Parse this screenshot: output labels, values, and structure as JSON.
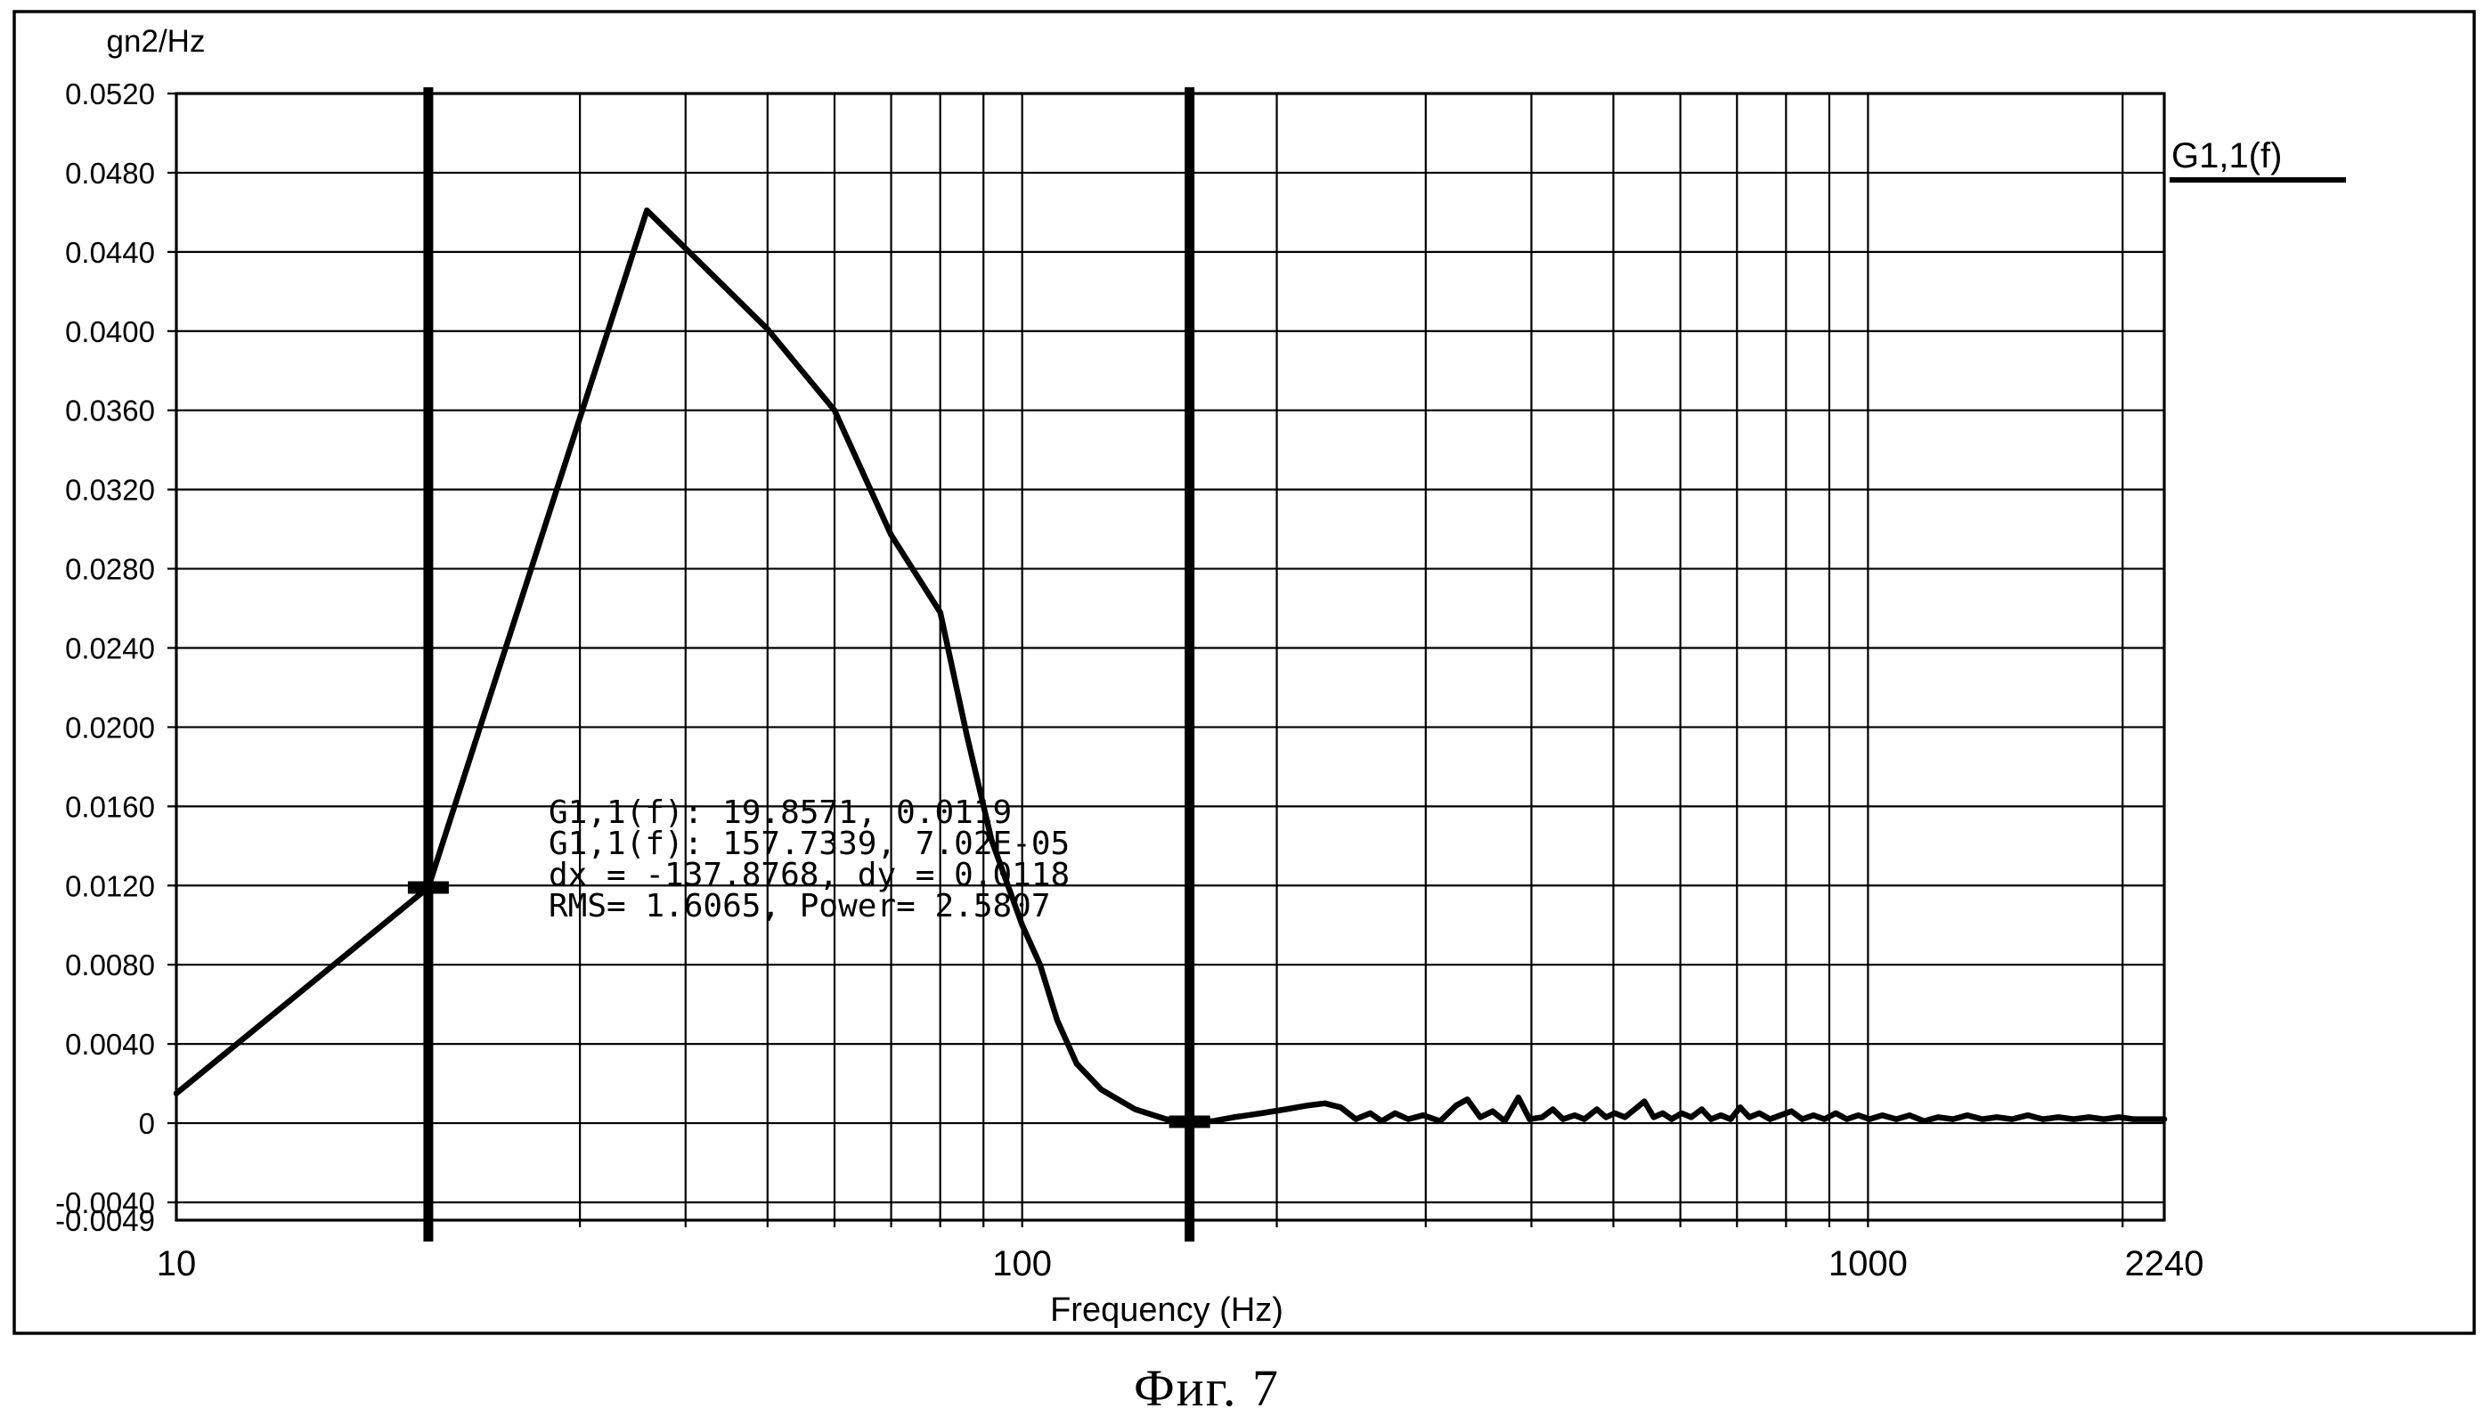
{
  "figure": {
    "caption": "Фиг. 7"
  },
  "chart_data": {
    "type": "line",
    "x_scale": "log",
    "xlabel": "Frequency (Hz)",
    "ylabel": "gn2/Hz",
    "xlim": [
      10,
      2240
    ],
    "ylim": [
      -0.0049,
      0.052
    ],
    "grid": true,
    "legend": {
      "label": "G1,1(f)",
      "position": "outside-top-right"
    },
    "x_ticks": [
      {
        "value": 10,
        "label": "10"
      },
      {
        "value": 100,
        "label": "100"
      },
      {
        "value": 1000,
        "label": "1000"
      },
      {
        "value": 2240,
        "label": "2240"
      }
    ],
    "x_gridlines": [
      20,
      30,
      40,
      50,
      60,
      70,
      80,
      90,
      100,
      200,
      300,
      400,
      500,
      600,
      700,
      800,
      900,
      1000,
      2000
    ],
    "y_ticks": [
      {
        "value": 0.052,
        "label": "0.0520"
      },
      {
        "value": 0.048,
        "label": "0.0480"
      },
      {
        "value": 0.044,
        "label": "0.0440"
      },
      {
        "value": 0.04,
        "label": "0.0400"
      },
      {
        "value": 0.036,
        "label": "0.0360"
      },
      {
        "value": 0.032,
        "label": "0.0320"
      },
      {
        "value": 0.028,
        "label": "0.0280"
      },
      {
        "value": 0.024,
        "label": "0.0240"
      },
      {
        "value": 0.02,
        "label": "0.0200"
      },
      {
        "value": 0.016,
        "label": "0.0160"
      },
      {
        "value": 0.012,
        "label": "0.0120"
      },
      {
        "value": 0.008,
        "label": "0.0080"
      },
      {
        "value": 0.004,
        "label": "0.0040"
      },
      {
        "value": 0,
        "label": "0"
      },
      {
        "value": -0.004,
        "label": "-0.0040"
      },
      {
        "value": -0.0049,
        "label": "-0.0049",
        "edge": true
      }
    ],
    "cursors": [
      {
        "f": 19.8571,
        "value": 0.0119
      },
      {
        "f": 157.7339,
        "value": 7.02e-05
      }
    ],
    "annotation": {
      "lines": [
        "G1,1(f): 19.8571, 0.0119",
        "G1,1(f): 157.7339, 7.02E-05",
        "dx = -137.8768, dy = 0.0118",
        "RMS= 1.6065, Power= 2.5807"
      ]
    },
    "cursor_readout": {
      "dx": -137.8768,
      "dy": 0.0118,
      "rms": 1.6065,
      "power": 2.5807
    },
    "series": [
      {
        "name": "G1,1(f)",
        "points": [
          [
            10,
            0.0015
          ],
          [
            19.8571,
            0.0119
          ],
          [
            36,
            0.0461
          ],
          [
            50,
            0.0401
          ],
          [
            60,
            0.036
          ],
          [
            70,
            0.0297
          ],
          [
            80,
            0.0258
          ],
          [
            86,
            0.0196
          ],
          [
            92,
            0.0143
          ],
          [
            100,
            0.01
          ],
          [
            105,
            0.008
          ],
          [
            110,
            0.0052
          ],
          [
            116,
            0.003
          ],
          [
            124,
            0.0017
          ],
          [
            136,
            0.0007
          ],
          [
            148,
            0.0002
          ],
          [
            157.7339,
            7.02e-05
          ],
          [
            168,
            0.0001
          ],
          [
            178,
            0.0003
          ],
          [
            192,
            0.0005
          ],
          [
            205,
            0.0007
          ],
          [
            218,
            0.0009
          ],
          [
            228,
            0.001
          ],
          [
            238,
            0.0008
          ],
          [
            248,
            0.0002
          ],
          [
            258,
            0.0005
          ],
          [
            266,
            0.0001
          ],
          [
            276,
            0.0005
          ],
          [
            286,
            0.0002
          ],
          [
            298,
            0.0004
          ],
          [
            312,
            0.0001
          ],
          [
            326,
            0.0009
          ],
          [
            336,
            0.0012
          ],
          [
            348,
            0.0003
          ],
          [
            360,
            0.0006
          ],
          [
            372,
            0.0001
          ],
          [
            386,
            0.0013
          ],
          [
            398,
            0.0002
          ],
          [
            412,
            0.0003
          ],
          [
            424,
            0.0007
          ],
          [
            436,
            0.0002
          ],
          [
            450,
            0.0004
          ],
          [
            462,
            0.0002
          ],
          [
            478,
            0.0007
          ],
          [
            490,
            0.0003
          ],
          [
            502,
            0.0005
          ],
          [
            516,
            0.0003
          ],
          [
            530,
            0.0007
          ],
          [
            544,
            0.0011
          ],
          [
            558,
            0.0003
          ],
          [
            572,
            0.0005
          ],
          [
            586,
            0.0002
          ],
          [
            602,
            0.0005
          ],
          [
            618,
            0.0003
          ],
          [
            636,
            0.0007
          ],
          [
            652,
            0.0002
          ],
          [
            670,
            0.0004
          ],
          [
            688,
            0.0002
          ],
          [
            706,
            0.0008
          ],
          [
            724,
            0.0003
          ],
          [
            744,
            0.0005
          ],
          [
            766,
            0.0002
          ],
          [
            788,
            0.0004
          ],
          [
            812,
            0.0006
          ],
          [
            836,
            0.0002
          ],
          [
            862,
            0.0004
          ],
          [
            888,
            0.0002
          ],
          [
            916,
            0.0005
          ],
          [
            944,
            0.0002
          ],
          [
            974,
            0.0004
          ],
          [
            1004,
            0.0002
          ],
          [
            1040,
            0.0004
          ],
          [
            1080,
            0.0002
          ],
          [
            1120,
            0.0004
          ],
          [
            1165,
            0.0001
          ],
          [
            1210,
            0.0003
          ],
          [
            1260,
            0.0002
          ],
          [
            1310,
            0.0004
          ],
          [
            1365,
            0.0002
          ],
          [
            1420,
            0.0003
          ],
          [
            1480,
            0.0002
          ],
          [
            1545,
            0.0004
          ],
          [
            1610,
            0.0002
          ],
          [
            1680,
            0.0003
          ],
          [
            1750,
            0.0002
          ],
          [
            1825,
            0.0003
          ],
          [
            1900,
            0.0002
          ],
          [
            1980,
            0.0003
          ],
          [
            2060,
            0.0002
          ],
          [
            2145,
            0.0002
          ],
          [
            2240,
            0.0002
          ]
        ]
      }
    ]
  }
}
